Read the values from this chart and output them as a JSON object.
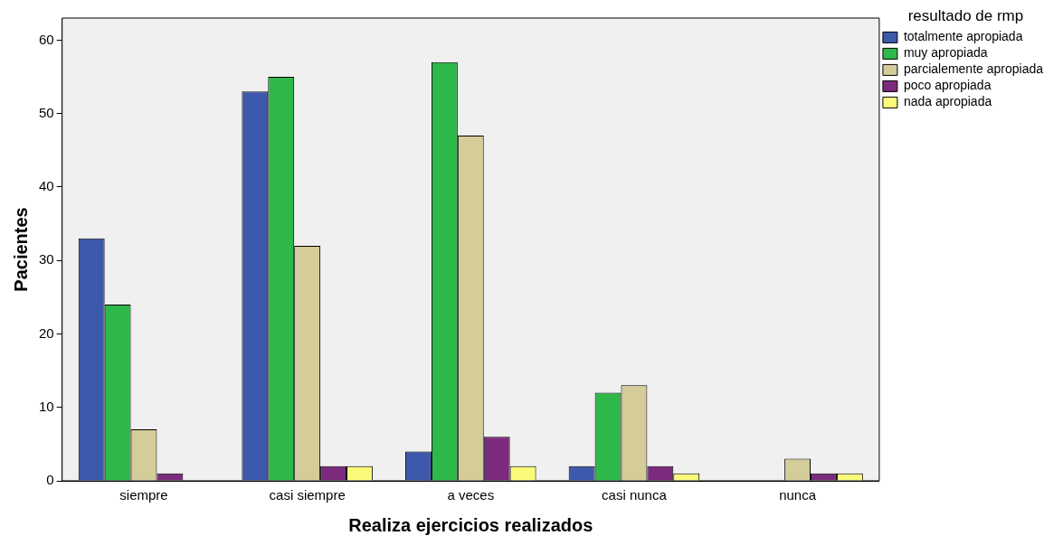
{
  "chart_data": {
    "type": "bar",
    "xlabel": "Realiza ejercicios realizados",
    "ylabel": "Pacientes",
    "legend_title": "resultado de rmp",
    "categories": [
      "siempre",
      "casi siempre",
      "a veces",
      "casi nunca",
      "nunca"
    ],
    "series": [
      {
        "name": "totalmente apropiada",
        "color": "#3d59ab",
        "values": [
          33,
          53,
          4,
          2,
          null
        ]
      },
      {
        "name": "muy apropiada",
        "color": "#2fb84a",
        "values": [
          24,
          55,
          57,
          12,
          null
        ]
      },
      {
        "name": "parcialemente apropiada",
        "color": "#d4cc99",
        "values": [
          7,
          32,
          47,
          13,
          3
        ]
      },
      {
        "name": "poco apropiada",
        "color": "#7b2a7e",
        "values": [
          1,
          2,
          6,
          2,
          1
        ]
      },
      {
        "name": "nada apropiada",
        "color": "#fbfb7a",
        "values": [
          null,
          2,
          2,
          1,
          1
        ]
      }
    ],
    "ylim": [
      0,
      63
    ],
    "yticks": [
      0,
      10,
      20,
      30,
      40,
      50,
      60
    ],
    "grid": false,
    "legend": "top right"
  }
}
